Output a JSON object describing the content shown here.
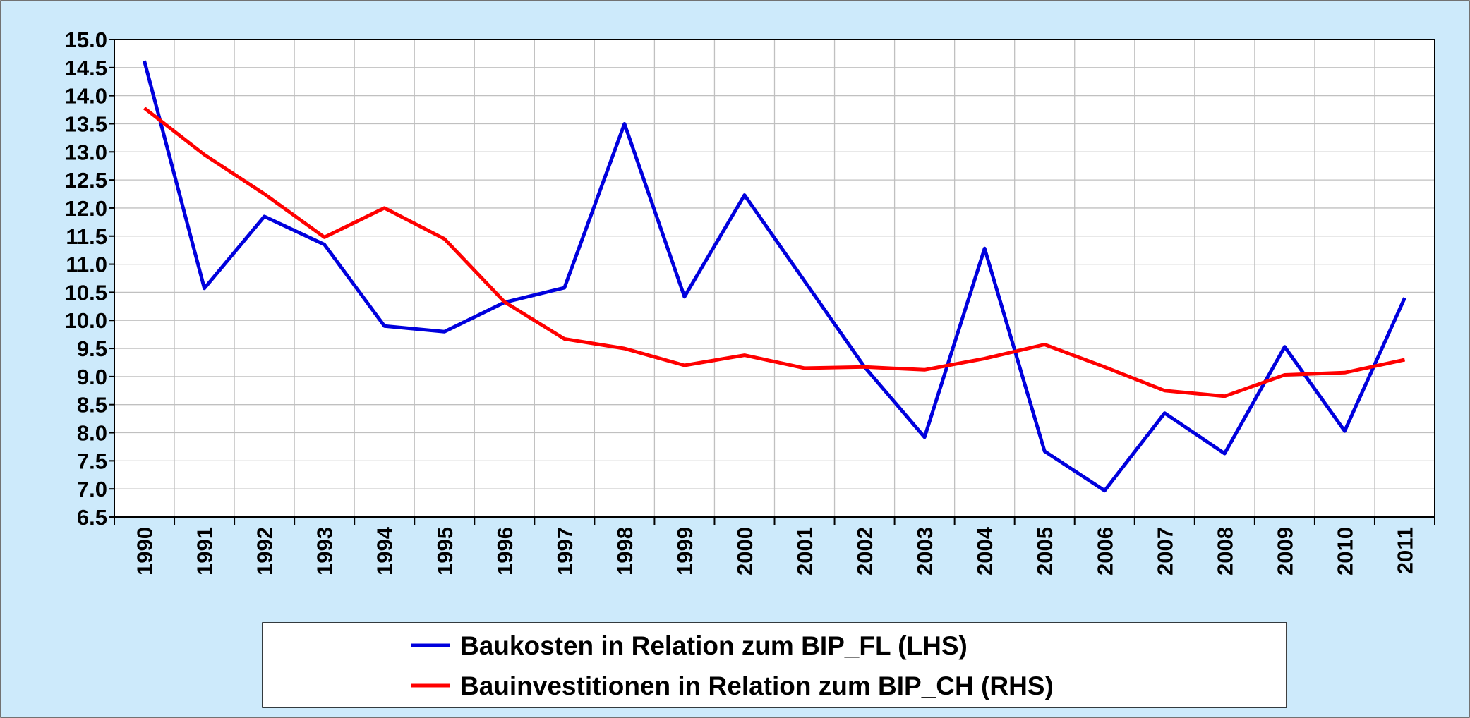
{
  "chart_data": {
    "type": "line",
    "categories": [
      "1990",
      "1991",
      "1992",
      "1993",
      "1994",
      "1995",
      "1996",
      "1997",
      "1998",
      "1999",
      "2000",
      "2001",
      "2002",
      "2003",
      "2004",
      "2005",
      "2006",
      "2007",
      "2008",
      "2009",
      "2010",
      "2011"
    ],
    "series": [
      {
        "name": "Baukosten in Relation zum BIP_FL (LHS)",
        "color": "#0000dd",
        "values": [
          14.62,
          10.57,
          11.85,
          11.35,
          9.9,
          9.8,
          10.32,
          10.58,
          13.5,
          10.42,
          12.23,
          10.7,
          9.17,
          7.92,
          11.28,
          7.67,
          6.97,
          8.35,
          7.63,
          9.53,
          8.03,
          10.4
        ]
      },
      {
        "name": "Bauinvestitionen in Relation zum BIP_CH (RHS)",
        "color": "#ff0000",
        "values": [
          13.78,
          12.95,
          12.25,
          11.48,
          12.0,
          11.45,
          10.33,
          9.67,
          9.5,
          9.2,
          9.38,
          9.15,
          9.17,
          9.12,
          9.32,
          9.57,
          9.17,
          8.75,
          8.65,
          9.03,
          9.07,
          9.3
        ]
      }
    ],
    "ylim": [
      6.5,
      15
    ],
    "yticks": [
      6.5,
      {
        "value": 7,
        "label": "7.0"
      },
      7.5,
      {
        "value": 8,
        "label": "8.0"
      },
      8.5,
      {
        "value": 9,
        "label": "9.0"
      },
      9.5,
      {
        "value": 10,
        "label": "10.0"
      },
      10.5,
      {
        "value": 11,
        "label": "11.0"
      },
      11.5,
      {
        "value": 12,
        "label": "12.0"
      },
      12.5,
      {
        "value": 13,
        "label": "13.0"
      },
      13.5,
      {
        "value": 14,
        "label": "14.0"
      },
      14.5,
      {
        "value": 15,
        "label": "15.0"
      }
    ],
    "grid": true,
    "legend": "bottom"
  }
}
